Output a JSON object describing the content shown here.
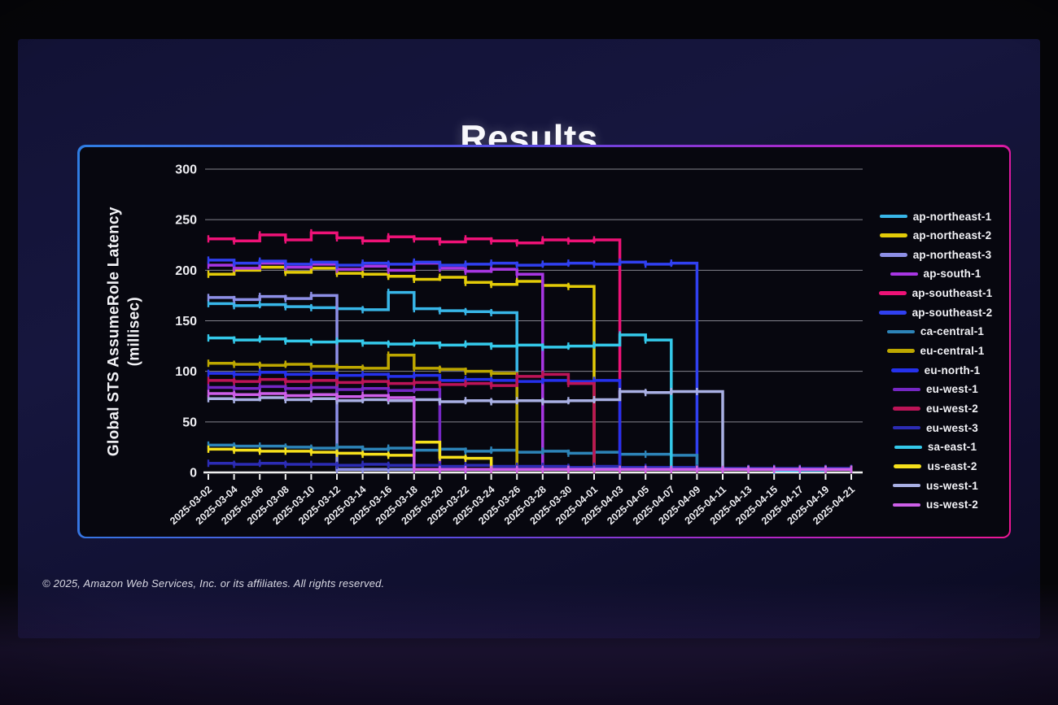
{
  "slide": {
    "title": "Results",
    "copyright": "© 2025, Amazon Web Services, Inc. or its affiliates. All rights reserved."
  },
  "chart_data": {
    "type": "line",
    "title": "Results",
    "ylabel": "Global STS AssumeRole Latency (millisec)",
    "ylabel_line1": "Global STS AssumeRole Latency",
    "ylabel_line2": "(millisec)",
    "ylim": [
      0,
      300
    ],
    "yticks": [
      0,
      50,
      100,
      150,
      200,
      250,
      300
    ],
    "grid": true,
    "legend_position": "right",
    "line_style": "step-after",
    "x_labels": [
      "2025-03-02",
      "2025-03-04",
      "2025-03-06",
      "2025-03-08",
      "2025-03-10",
      "2025-03-12",
      "2025-03-14",
      "2025-03-16",
      "2025-03-18",
      "2025-03-20",
      "2025-03-22",
      "2025-03-24",
      "2025-03-26",
      "2025-03-28",
      "2025-03-30",
      "2025-04-01",
      "2025-04-03",
      "2025-04-05",
      "2025-04-07",
      "2025-04-09",
      "2025-04-11",
      "2025-04-13",
      "2025-04-15",
      "2025-04-17",
      "2025-04-19",
      "2025-04-21"
    ],
    "series": [
      {
        "name": "ap-northeast-1",
        "color": "#38b6e8",
        "values": [
          167,
          165,
          166,
          164,
          163,
          162,
          161,
          178,
          162,
          160,
          159,
          158,
          3,
          3,
          3,
          4,
          3,
          3,
          3,
          3,
          3,
          3,
          2,
          3,
          3,
          3
        ]
      },
      {
        "name": "ap-northeast-2",
        "color": "#e3cb08",
        "values": [
          196,
          200,
          203,
          198,
          202,
          197,
          196,
          194,
          191,
          193,
          188,
          186,
          189,
          185,
          184,
          3,
          3,
          3,
          3,
          3,
          3,
          3,
          3,
          3,
          3,
          3
        ]
      },
      {
        "name": "ap-northeast-3",
        "color": "#8d8fe6",
        "values": [
          173,
          171,
          174,
          172,
          175,
          3,
          3,
          3,
          3,
          3,
          3,
          3,
          3,
          3,
          4,
          3,
          3,
          3,
          3,
          3,
          3,
          3,
          3,
          3,
          3,
          3
        ]
      },
      {
        "name": "ap-south-1",
        "color": "#a836e3",
        "values": [
          205,
          202,
          207,
          203,
          206,
          201,
          204,
          200,
          207,
          202,
          199,
          201,
          196,
          3,
          3,
          3,
          3,
          3,
          3,
          3,
          3,
          3,
          3,
          3,
          3,
          3
        ]
      },
      {
        "name": "ap-southeast-1",
        "color": "#ee1277",
        "values": [
          231,
          229,
          235,
          230,
          237,
          232,
          229,
          233,
          231,
          228,
          231,
          229,
          227,
          230,
          229,
          230,
          3,
          3,
          3,
          3,
          3,
          3,
          3,
          3,
          3,
          3
        ]
      },
      {
        "name": "ap-southeast-2",
        "color": "#3040f0",
        "values": [
          210,
          207,
          209,
          206,
          208,
          205,
          207,
          206,
          208,
          205,
          206,
          207,
          205,
          206,
          207,
          206,
          208,
          206,
          207,
          3,
          3,
          3,
          3,
          3,
          3,
          3
        ]
      },
      {
        "name": "ca-central-1",
        "color": "#2d84b8",
        "values": [
          27,
          26,
          26,
          25,
          24,
          25,
          23,
          24,
          22,
          23,
          21,
          22,
          20,
          21,
          19,
          20,
          18,
          18,
          17,
          3,
          3,
          3,
          3,
          2,
          3,
          3
        ]
      },
      {
        "name": "eu-central-1",
        "color": "#bda700",
        "values": [
          108,
          107,
          106,
          107,
          105,
          104,
          103,
          116,
          103,
          102,
          100,
          98,
          3,
          3,
          3,
          3,
          3,
          3,
          3,
          3,
          3,
          3,
          3,
          3,
          3,
          3
        ]
      },
      {
        "name": "eu-north-1",
        "color": "#2531ec",
        "values": [
          98,
          97,
          99,
          97,
          98,
          96,
          97,
          95,
          96,
          91,
          92,
          91,
          90,
          91,
          90,
          91,
          3,
          3,
          3,
          3,
          3,
          3,
          3,
          3,
          3,
          3
        ]
      },
      {
        "name": "eu-west-1",
        "color": "#7527c4",
        "values": [
          84,
          83,
          85,
          83,
          84,
          82,
          83,
          81,
          82,
          3,
          3,
          3,
          3,
          3,
          3,
          3,
          3,
          3,
          3,
          3,
          3,
          3,
          3,
          3,
          3,
          3
        ]
      },
      {
        "name": "eu-west-2",
        "color": "#bc1457",
        "values": [
          91,
          90,
          92,
          90,
          91,
          89,
          90,
          88,
          89,
          87,
          88,
          86,
          95,
          97,
          88,
          3,
          3,
          3,
          3,
          3,
          3,
          3,
          3,
          3,
          3,
          3
        ]
      },
      {
        "name": "eu-west-3",
        "color": "#2c2cb4",
        "values": [
          9,
          8,
          9,
          8,
          8,
          7,
          8,
          7,
          7,
          6,
          7,
          6,
          6,
          6,
          5,
          6,
          5,
          5,
          5,
          4,
          4,
          4,
          4,
          4,
          4,
          4
        ]
      },
      {
        "name": "sa-east-1",
        "color": "#34c9ea",
        "values": [
          133,
          131,
          132,
          130,
          129,
          130,
          128,
          127,
          128,
          126,
          127,
          125,
          126,
          124,
          125,
          126,
          136,
          131,
          3,
          3,
          3,
          3,
          3,
          3,
          3,
          3
        ]
      },
      {
        "name": "us-east-2",
        "color": "#f6e01c",
        "values": [
          23,
          22,
          21,
          21,
          20,
          19,
          18,
          17,
          30,
          15,
          14,
          3,
          3,
          3,
          3,
          3,
          3,
          3,
          3,
          3,
          3,
          3,
          3,
          3,
          3,
          3
        ]
      },
      {
        "name": "us-west-1",
        "color": "#a9b0e4",
        "values": [
          73,
          72,
          74,
          72,
          73,
          71,
          72,
          71,
          72,
          70,
          71,
          70,
          71,
          70,
          71,
          72,
          80,
          79,
          80,
          80,
          3,
          3,
          3,
          3,
          3,
          3
        ]
      },
      {
        "name": "us-west-2",
        "color": "#cd5fe8",
        "values": [
          78,
          77,
          78,
          76,
          77,
          75,
          76,
          74,
          3,
          3,
          3,
          3,
          3,
          3,
          3,
          3,
          3,
          3,
          3,
          3,
          3,
          3,
          3,
          3,
          3,
          3
        ]
      }
    ]
  },
  "style_colors": {
    "frame_gradient_start": "#2f7de2",
    "frame_gradient_end": "#ec1692",
    "gridline": "#84848e",
    "axis": "#f0f0f0",
    "tick_text": "#eeeef2"
  }
}
